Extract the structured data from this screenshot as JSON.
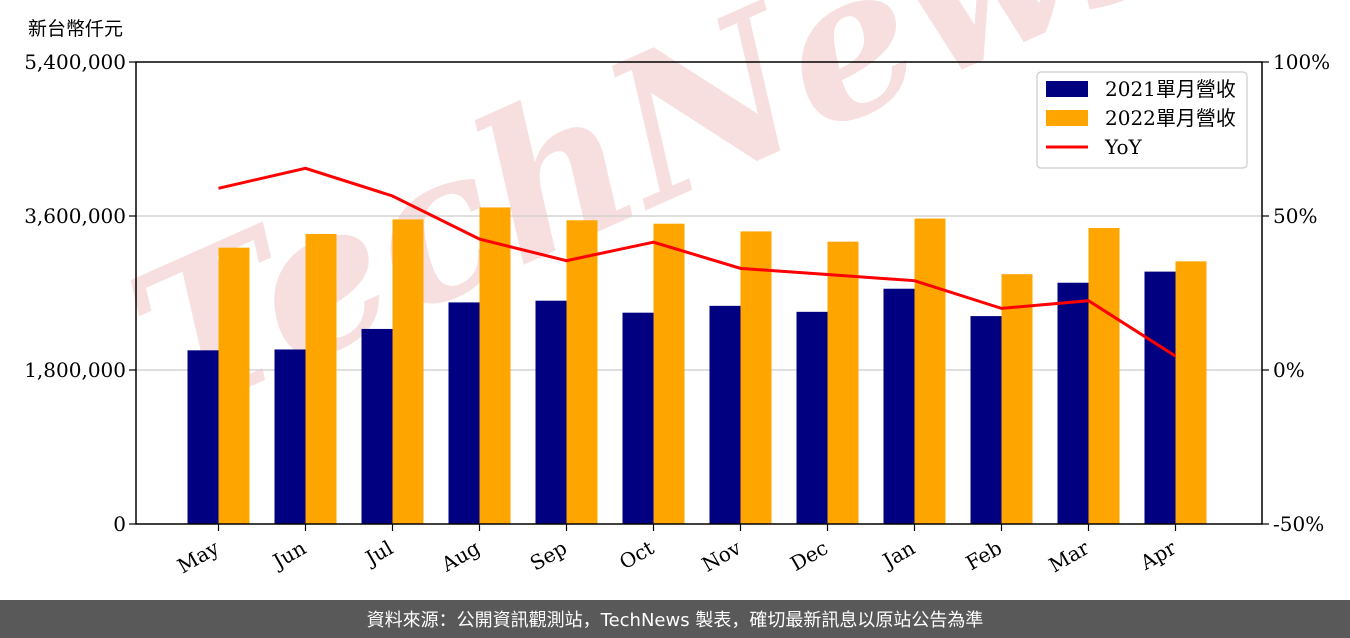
{
  "unit_label": "新台幣仟元",
  "footer": "資料來源：公開資訊觀測站，TechNews 製表，確切最新訊息以原站公告為準",
  "watermark": "TechNews",
  "colors": {
    "series2021": "#000080",
    "series2022": "#FFA500",
    "yoy": "#FF0000",
    "watermark": "#f3c4c4"
  },
  "chart_data": {
    "type": "bar",
    "categories": [
      "May",
      "Jun",
      "Jul",
      "Aug",
      "Sep",
      "Oct",
      "Nov",
      "Dec",
      "Jan",
      "Feb",
      "Mar",
      "Apr"
    ],
    "series": [
      {
        "name": "2021單月營收",
        "values": [
          2030000,
          2040000,
          2280000,
          2590000,
          2610000,
          2470000,
          2550000,
          2480000,
          2750000,
          2430000,
          2820000,
          2950000
        ]
      },
      {
        "name": "2022單月營收",
        "values": [
          3230000,
          3390000,
          3560000,
          3700000,
          3550000,
          3510000,
          3420000,
          3300000,
          3570000,
          2920000,
          3460000,
          3070000
        ]
      },
      {
        "name": "YoY",
        "type": "line",
        "axis": "right",
        "values": [
          59,
          65.5,
          56.5,
          42.5,
          35.5,
          41.5,
          33,
          31,
          29,
          20,
          22.5,
          4.5
        ]
      }
    ],
    "y_left": {
      "ylim": [
        0,
        5400000
      ],
      "ticks": [
        "0",
        "1,800,000",
        "3,600,000",
        "5,400,000"
      ],
      "tick_values": [
        0,
        1800000,
        3600000,
        5400000
      ]
    },
    "y_right": {
      "ylim": [
        -50,
        100
      ],
      "ticks": [
        "-50%",
        "0%",
        "50%",
        "100%"
      ],
      "tick_values": [
        -50,
        0,
        50,
        100
      ]
    },
    "grid": "horizontal",
    "legend": {
      "position": "top-right",
      "entries": [
        "2021單月營收",
        "2022單月營收",
        "YoY"
      ]
    }
  }
}
